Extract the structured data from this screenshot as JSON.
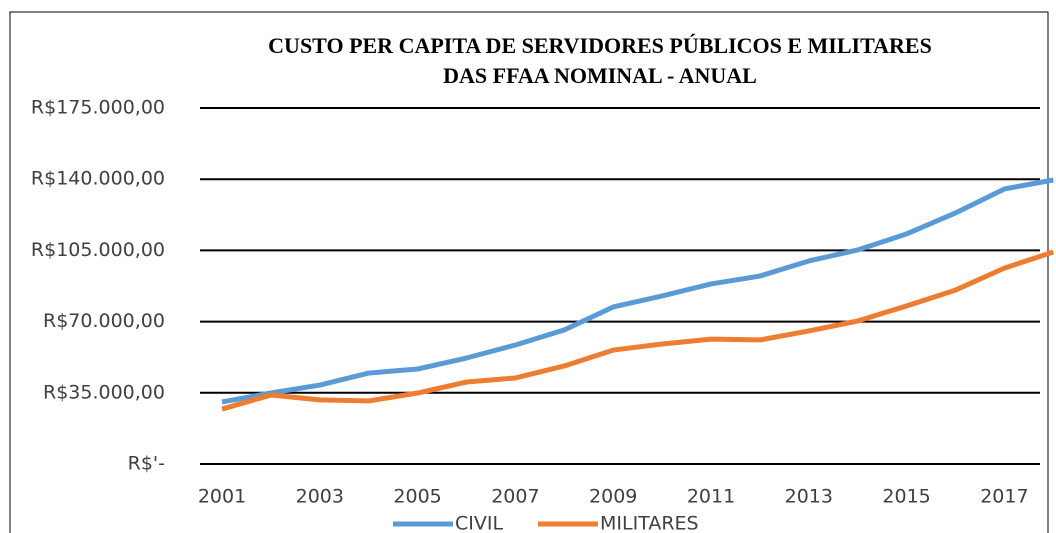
{
  "chart_data": {
    "type": "line",
    "title": [
      "CUSTO PER CAPITA DE SERVIDORES PÚBLICOS E MILITARES",
      "DAS FFAA NOMINAL - ANUAL"
    ],
    "categories": [
      "2001",
      null,
      "2003",
      null,
      "2005",
      null,
      "2007",
      null,
      "2009",
      null,
      "2011",
      null,
      "2013",
      null,
      "2015",
      null,
      "2017",
      null
    ],
    "series": [
      {
        "name": "CIVIL",
        "color": "#5b9bd5",
        "values": [
          30500,
          34900,
          38800,
          44700,
          46700,
          52100,
          58500,
          65900,
          77200,
          82600,
          88500,
          92400,
          99800,
          105200,
          113100,
          123400,
          135200,
          139600
        ]
      },
      {
        "name": "MILITARES",
        "color": "#ed7d31",
        "values": [
          27000,
          33900,
          31500,
          31000,
          34900,
          40300,
          42300,
          48200,
          56000,
          59000,
          61400,
          61000,
          65400,
          70300,
          77700,
          85500,
          96300,
          104200
        ]
      }
    ],
    "ylim": [
      0,
      175000
    ],
    "yticks": [
      {
        "value": 0,
        "label": "R$'-"
      },
      {
        "value": 35000,
        "label": "R$35.000,00"
      },
      {
        "value": 70000,
        "label": "R$70.000,00"
      },
      {
        "value": 105000,
        "label": "R$105.000,00"
      },
      {
        "value": 140000,
        "label": "R$140.000,00"
      },
      {
        "value": 175000,
        "label": "R$175.000,00"
      }
    ],
    "grid": true,
    "legend": "bottom"
  }
}
